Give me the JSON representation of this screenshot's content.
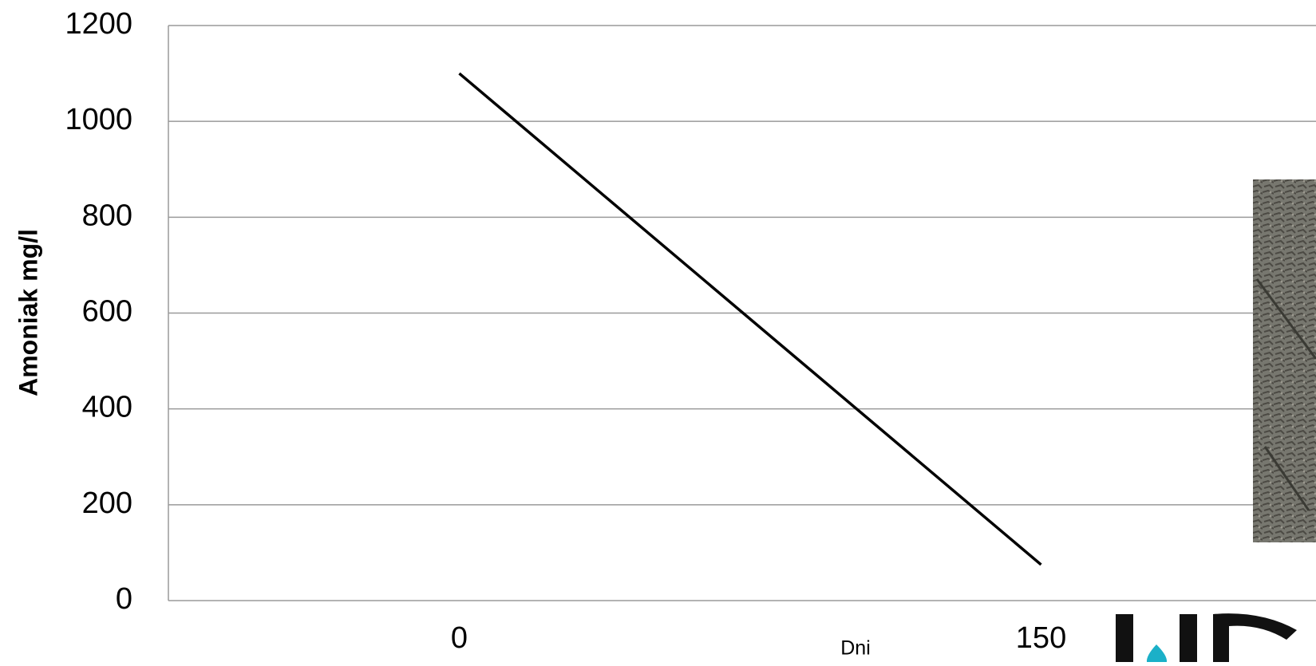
{
  "chart_data": {
    "type": "line",
    "x_label": "Dni",
    "y_label": "Amoniak mg/l",
    "categories": [
      "0",
      "150"
    ],
    "series": [
      {
        "name": null,
        "color": "#000000",
        "values": [
          1100,
          75
        ]
      }
    ],
    "ylim": [
      0,
      1200
    ],
    "yticks": [
      0,
      200,
      400,
      600,
      800,
      1000,
      1200
    ],
    "grid": true
  }
}
